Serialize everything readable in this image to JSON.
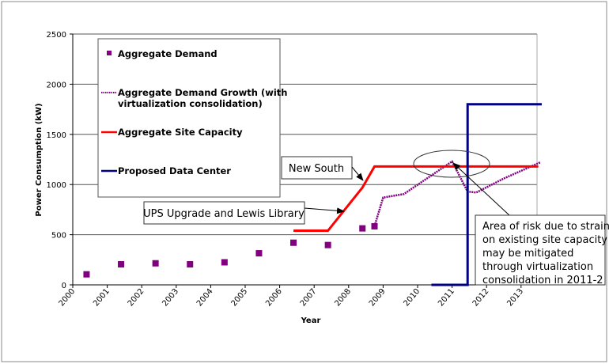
{
  "chart_data": {
    "type": "line",
    "xlabel": "Year",
    "ylabel": "Power Consumption (kW)",
    "xlim": [
      2000,
      2013.6
    ],
    "ylim": [
      0,
      2500
    ],
    "x_ticks": [
      "2000",
      "2001",
      "2002",
      "2003",
      "2004",
      "2005",
      "2006",
      "2007",
      "2008",
      "2009",
      "2010",
      "2011",
      "2012",
      "2013"
    ],
    "y_ticks": [
      "0",
      "500",
      "1000",
      "1500",
      "2000",
      "2500"
    ],
    "grid": "horizontal",
    "legend_position": "top-left",
    "series": [
      {
        "name": "Aggregate Demand",
        "style": "markers",
        "color": "#800080",
        "x": [
          2000.4,
          2001.4,
          2002.4,
          2003.4,
          2004.4,
          2005.4,
          2006.4,
          2007.4,
          2008.4,
          2008.75
        ],
        "y": [
          105,
          205,
          215,
          205,
          225,
          315,
          420,
          397,
          563,
          584
        ]
      },
      {
        "name": "Aggregate Demand Growth (with virtualization consolidation)",
        "style": "dotted-line",
        "color": "#800080",
        "x": [
          2008.75,
          2009,
          2009.6,
          2011,
          2011.45,
          2011.7,
          2012.5,
          2013.55
        ],
        "y": [
          584,
          870,
          905,
          1230,
          930,
          920,
          1060,
          1220
        ]
      },
      {
        "name": "Aggregate Site Capacity",
        "style": "line",
        "color": "#ff0000",
        "x": [
          2006.4,
          2007.4,
          2008.4,
          2008.75,
          2013.5
        ],
        "y": [
          540,
          540,
          970,
          1180,
          1180
        ]
      },
      {
        "name": "Proposed Data Center",
        "style": "line",
        "color": "#000080",
        "x": [
          2010.4,
          2011.45,
          2011.45,
          2013.6
        ],
        "y": [
          0,
          0,
          1800,
          1800
        ]
      }
    ],
    "annotations": [
      {
        "text": "New South"
      },
      {
        "text": "UPS Upgrade and Lewis Library"
      },
      {
        "text_lines": [
          "Area of risk due to strain",
          "on existing site capacity",
          "may be mitigated",
          "through virtualization",
          "consolidation in 2011-2"
        ]
      }
    ]
  }
}
